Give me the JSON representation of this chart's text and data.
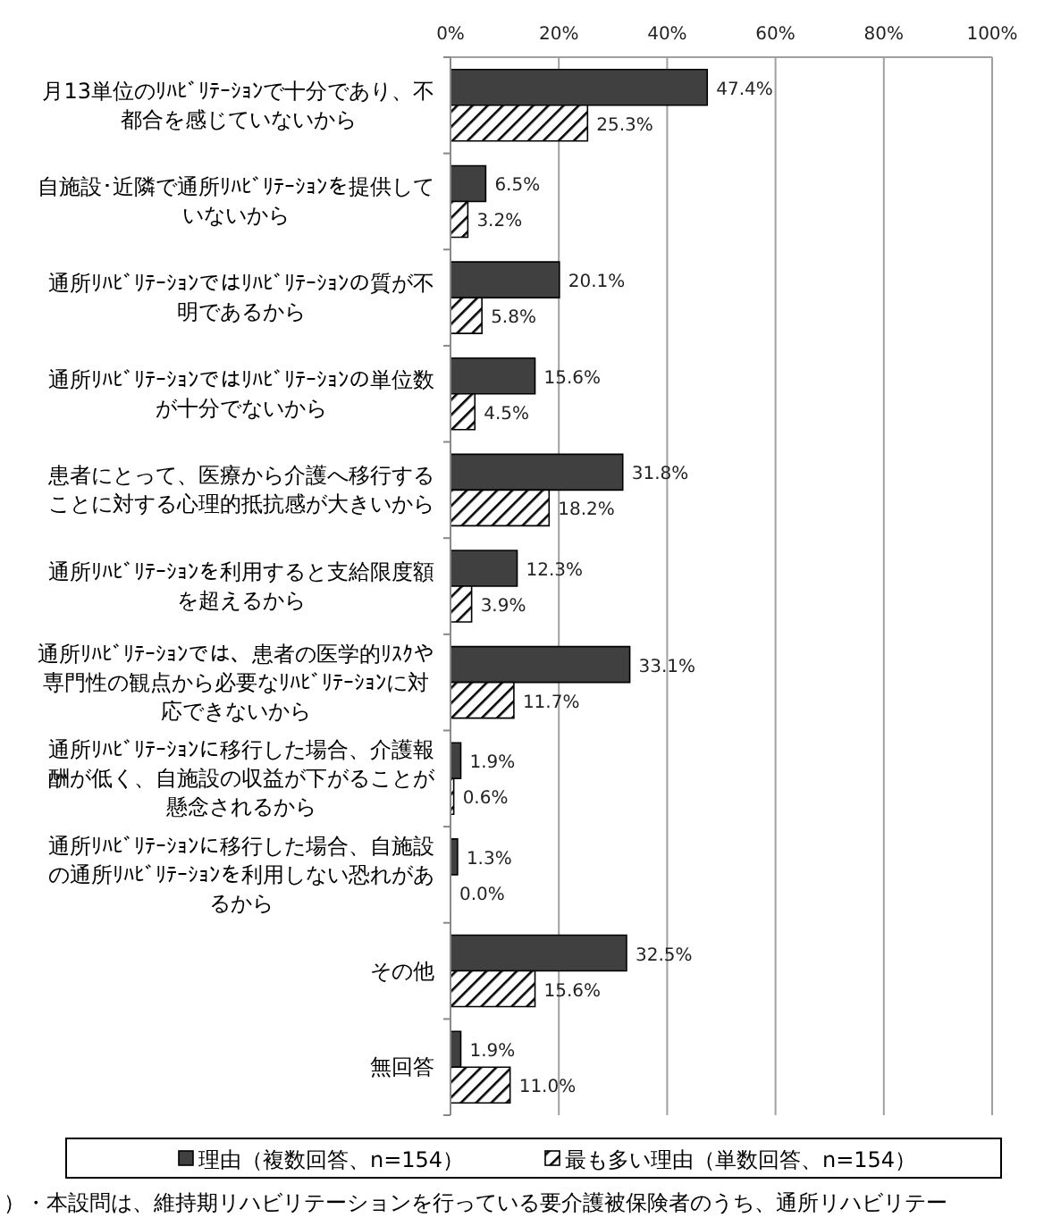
{
  "chart_data": {
    "type": "bar",
    "orientation": "horizontal",
    "categories": [
      "月13単位のﾘﾊﾋﾞﾘﾃｰｼｮﾝで十分であり、不都合を感じていないから",
      "自施設･近隣で通所ﾘﾊﾋﾞﾘﾃｰｼｮﾝを提供していないから",
      "通所ﾘﾊﾋﾞﾘﾃｰｼｮﾝではﾘﾊﾋﾞﾘﾃｰｼｮﾝの質が不明であるから",
      "通所ﾘﾊﾋﾞﾘﾃｰｼｮﾝではﾘﾊﾋﾞﾘﾃｰｼｮﾝの単位数が十分でないから",
      "患者にとって、医療から介護へ移行することに対する心理的抵抗感が大きいから",
      "通所ﾘﾊﾋﾞﾘﾃｰｼｮﾝを利用すると支給限度額を超えるから",
      "通所ﾘﾊﾋﾞﾘﾃｰｼｮﾝでは、患者の医学的ﾘｽｸや専門性の観点から必要なﾘﾊﾋﾞﾘﾃｰｼｮﾝに対応できないから",
      "通所ﾘﾊﾋﾞﾘﾃｰｼｮﾝに移行した場合、介護報酬が低く、自施設の収益が下がることが懸念されるから",
      "通所ﾘﾊﾋﾞﾘﾃｰｼｮﾝに移行した場合、自施設の通所ﾘﾊﾋﾞﾘﾃｰｼｮﾝを利用しない恐れがあるから",
      "その他",
      "無回答"
    ],
    "series": [
      {
        "name": "理由（複数回答、n=154）",
        "color": "#404040",
        "values": [
          47.4,
          6.5,
          20.1,
          15.6,
          31.8,
          12.3,
          33.1,
          1.9,
          1.3,
          32.5,
          1.9
        ],
        "value_labels": [
          "47.4%",
          "6.5%",
          "20.1%",
          "15.6%",
          "31.8%",
          "12.3%",
          "33.1%",
          "1.9%",
          "1.3%",
          "32.5%",
          "1.9%"
        ]
      },
      {
        "name": "最も多い理由（単数回答、n=154）",
        "color": "#000000",
        "values": [
          25.3,
          3.2,
          5.8,
          4.5,
          18.2,
          3.9,
          11.7,
          0.6,
          0.0,
          15.6,
          11.0
        ],
        "value_labels": [
          "25.3%",
          "3.2%",
          "5.8%",
          "4.5%",
          "18.2%",
          "3.9%",
          "11.7%",
          "0.6%",
          "0.0%",
          "15.6%",
          "11.0%"
        ]
      }
    ],
    "xlim": [
      0,
      100
    ],
    "xticks": [
      {
        "value": 0,
        "label": "0%"
      },
      {
        "value": 20,
        "label": "20%"
      },
      {
        "value": 40,
        "label": "40%"
      },
      {
        "value": 60,
        "label": "60%"
      },
      {
        "value": 80,
        "label": "80%"
      },
      {
        "value": 100,
        "label": "100%"
      }
    ],
    "grid": "x",
    "legend": "bottom",
    "annotations": [
      "）・本設問は、維持期リハビリテーションを行っている要介護被保険者のうち、通所リハビリテー"
    ]
  }
}
